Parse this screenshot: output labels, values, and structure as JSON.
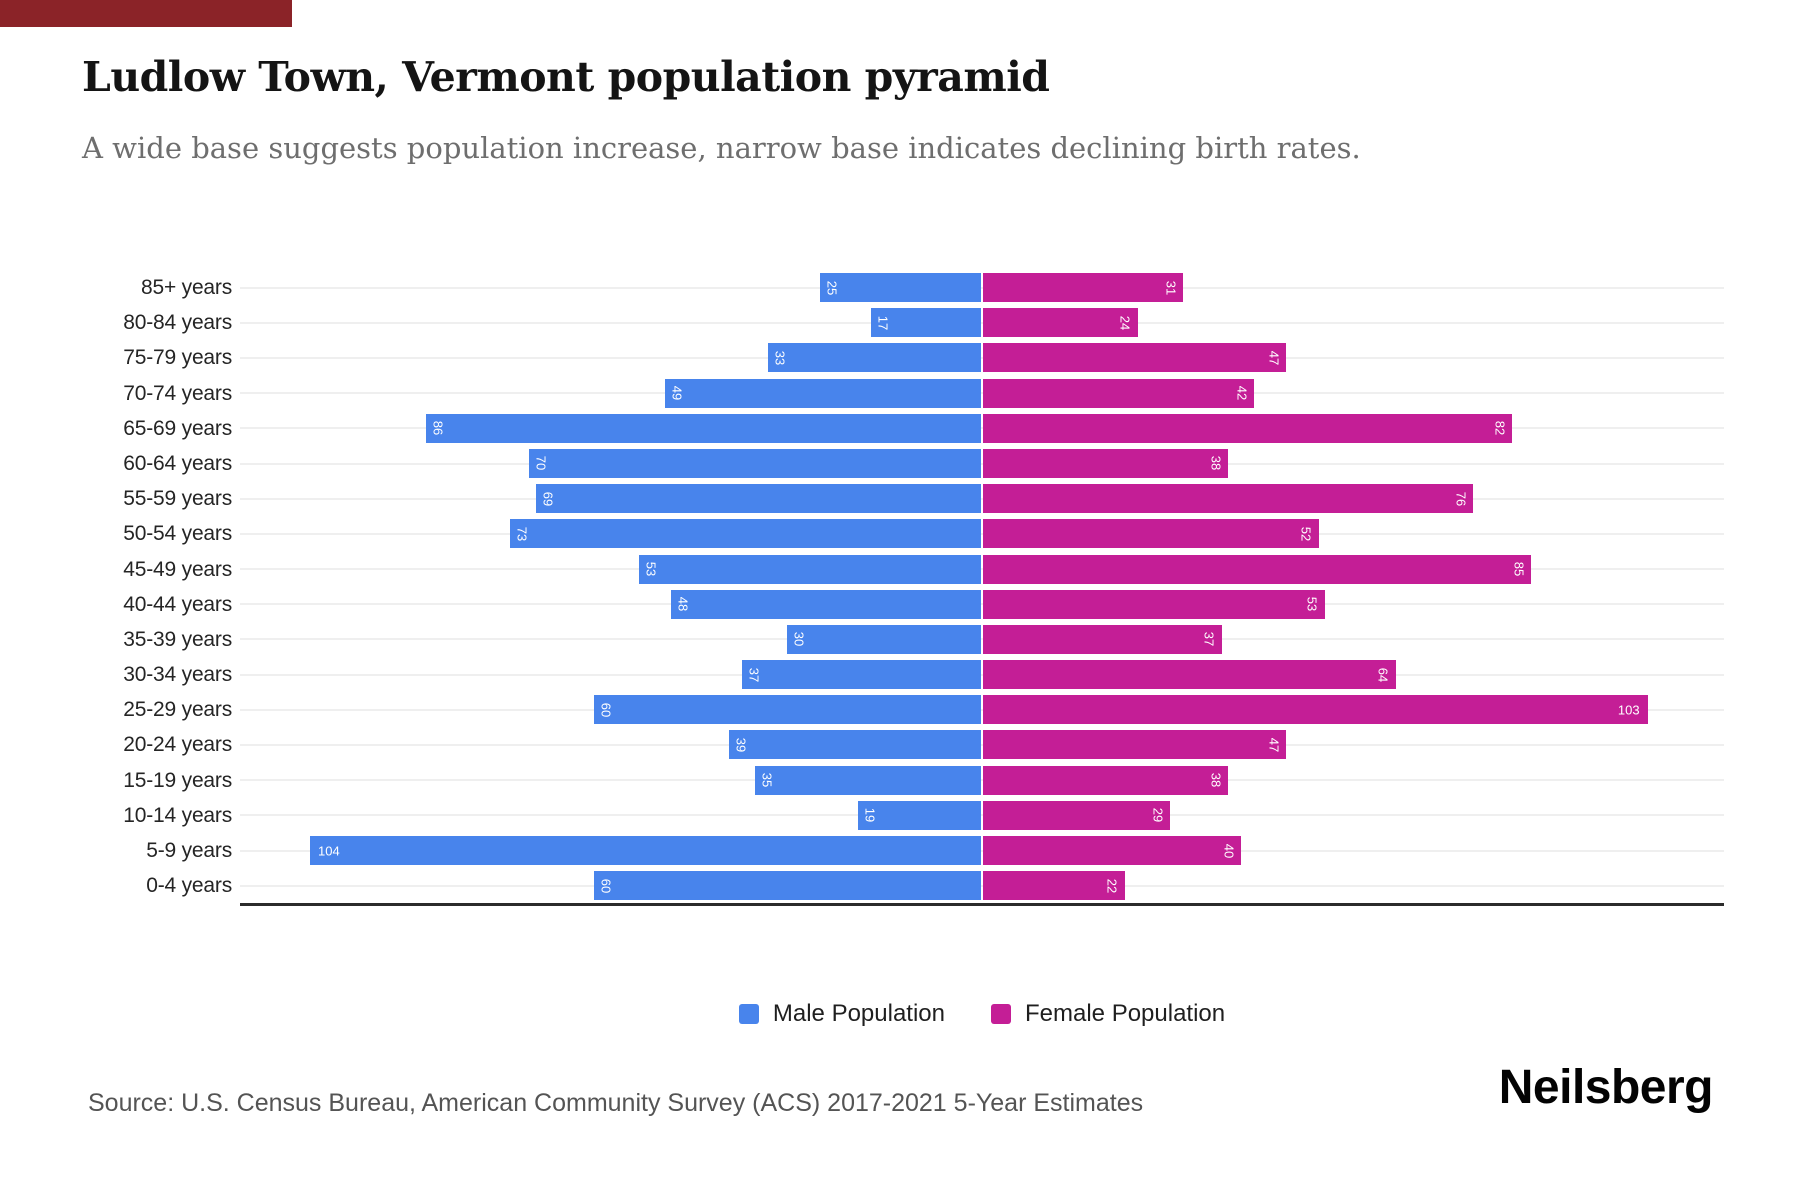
{
  "artifact": {
    "color": "#8B2328"
  },
  "header": {
    "title": "Ludlow Town, Vermont population pyramid",
    "subtitle": "A wide base suggests population increase, narrow base indicates declining birth rates."
  },
  "chart_data": {
    "type": "bar",
    "variant": "population-pyramid",
    "orientation": "horizontal",
    "categories": [
      "85+ years",
      "80-84 years",
      "75-79 years",
      "70-74 years",
      "65-69 years",
      "60-64 years",
      "55-59 years",
      "50-54 years",
      "45-49 years",
      "40-44 years",
      "35-39 years",
      "30-34 years",
      "25-29 years",
      "20-24 years",
      "15-19 years",
      "10-14 years",
      "5-9 years",
      "0-4 years"
    ],
    "series": [
      {
        "name": "Male Population",
        "side": "left",
        "color": "#4884EC",
        "values": [
          25,
          17,
          33,
          49,
          86,
          70,
          69,
          73,
          53,
          48,
          30,
          37,
          60,
          39,
          35,
          19,
          104,
          60
        ]
      },
      {
        "name": "Female Population",
        "side": "right",
        "color": "#C41E96",
        "values": [
          31,
          24,
          47,
          42,
          82,
          38,
          76,
          52,
          85,
          53,
          37,
          64,
          103,
          47,
          38,
          29,
          40,
          22
        ]
      }
    ],
    "value_axis_max_per_side": 115,
    "grid": true,
    "legend_position": "bottom-center",
    "bar_label_color": "#FFFFFF"
  },
  "footer": {
    "source": "Source: U.S. Census Bureau, American Community Survey (ACS) 2017-2021 5-Year Estimates",
    "brand": "Neilsberg"
  },
  "colors": {
    "title": "#141414",
    "subtitle": "#6E6E6E",
    "age_label": "#252525",
    "gridline": "#EFEFEF",
    "axis": "#2B2B2B",
    "bar_label": "#FFFFFF",
    "legend_text": "#1F1F1F",
    "source_text": "#545454",
    "brand_text": "#030303"
  }
}
